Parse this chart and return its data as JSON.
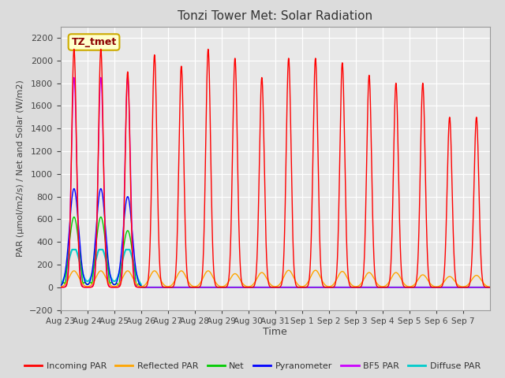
{
  "title": "Tonzi Tower Met: Solar Radiation",
  "xlabel": "Time",
  "ylabel": "PAR (μmol/m2/s) / Net and Solar (W/m2)",
  "ylim": [
    -200,
    2300
  ],
  "yticks": [
    -200,
    0,
    200,
    400,
    600,
    800,
    1000,
    1200,
    1400,
    1600,
    1800,
    2000,
    2200
  ],
  "bg_color": "#dcdcdc",
  "plot_bg_color": "#e8e8e8",
  "annotation_label": "TZ_tmet",
  "annotation_bg": "#ffffcc",
  "annotation_border": "#ccaa00",
  "series_colors": {
    "incoming": "#ff0000",
    "reflected": "#ffa500",
    "net": "#00cc00",
    "pyranometer": "#0000ff",
    "bf5": "#cc00ff",
    "diffuse": "#00cccc"
  },
  "legend_labels": [
    "Incoming PAR",
    "Reflected PAR",
    "Net",
    "Pyranometer",
    "BF5 PAR",
    "Diffuse PAR"
  ],
  "n_days": 16,
  "day_labels": [
    "Aug 23",
    "Aug 24",
    "Aug 25",
    "Aug 26",
    "Aug 27",
    "Aug 28",
    "Aug 29",
    "Aug 30",
    "Aug 31",
    "Sep 1",
    "Sep 2",
    "Sep 3",
    "Sep 4",
    "Sep 5",
    "Sep 6",
    "Sep 7"
  ],
  "incoming_peaks": [
    2100,
    2100,
    1900,
    2050,
    1950,
    2100,
    2020,
    1850,
    2020,
    2020,
    1980,
    1870,
    1800,
    1800,
    1500,
    1500
  ],
  "reflected_peaks": [
    145,
    145,
    145,
    145,
    145,
    145,
    120,
    130,
    150,
    150,
    140,
    130,
    130,
    110,
    95,
    105
  ],
  "net_peaks": [
    620,
    620,
    500,
    0,
    0,
    0,
    0,
    0,
    0,
    0,
    0,
    0,
    0,
    0,
    0,
    0
  ],
  "pyranometer_peaks": [
    870,
    870,
    800,
    0,
    0,
    0,
    0,
    0,
    0,
    0,
    0,
    0,
    0,
    0,
    0,
    0
  ],
  "bf5_peaks": [
    1850,
    1850,
    1850,
    0,
    0,
    0,
    0,
    0,
    0,
    0,
    0,
    0,
    0,
    0,
    0,
    0
  ],
  "diffuse_peaks": [
    350,
    350,
    350,
    0,
    0,
    0,
    0,
    0,
    0,
    0,
    0,
    0,
    0,
    0,
    0,
    0
  ]
}
